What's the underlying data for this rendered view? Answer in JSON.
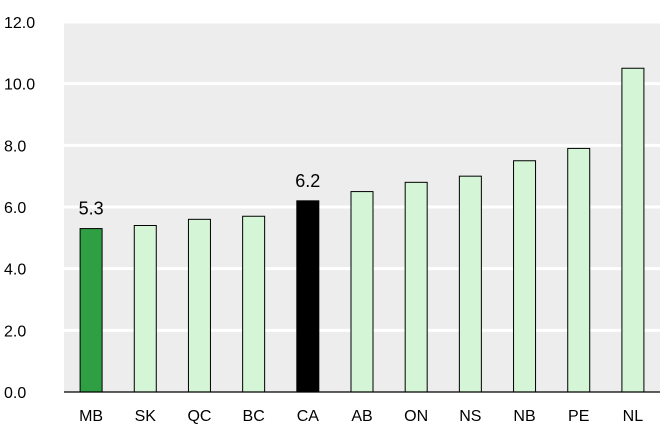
{
  "chart_data": {
    "type": "bar",
    "title": "",
    "xlabel": "",
    "ylabel": "",
    "ylim": [
      0,
      12
    ],
    "yticks": [
      "0.0",
      "2.0",
      "4.0",
      "6.0",
      "8.0",
      "10.0",
      "12.0"
    ],
    "grid": true,
    "categories": [
      "MB",
      "SK",
      "QC",
      "BC",
      "CA",
      "AB",
      "ON",
      "NS",
      "NB",
      "PE",
      "NL"
    ],
    "values": [
      5.3,
      5.4,
      5.6,
      5.7,
      6.2,
      6.5,
      6.8,
      7.0,
      7.5,
      7.9,
      10.5
    ],
    "data_labels": {
      "MB": "5.3",
      "CA": "6.2"
    },
    "colors": {
      "default": "#d4f5d6",
      "highlight": "#2ea043",
      "national": "#000000",
      "plot_background": "#ededed",
      "gridline": "#ffffff"
    },
    "highlight_category": "MB",
    "national_category": "CA"
  }
}
